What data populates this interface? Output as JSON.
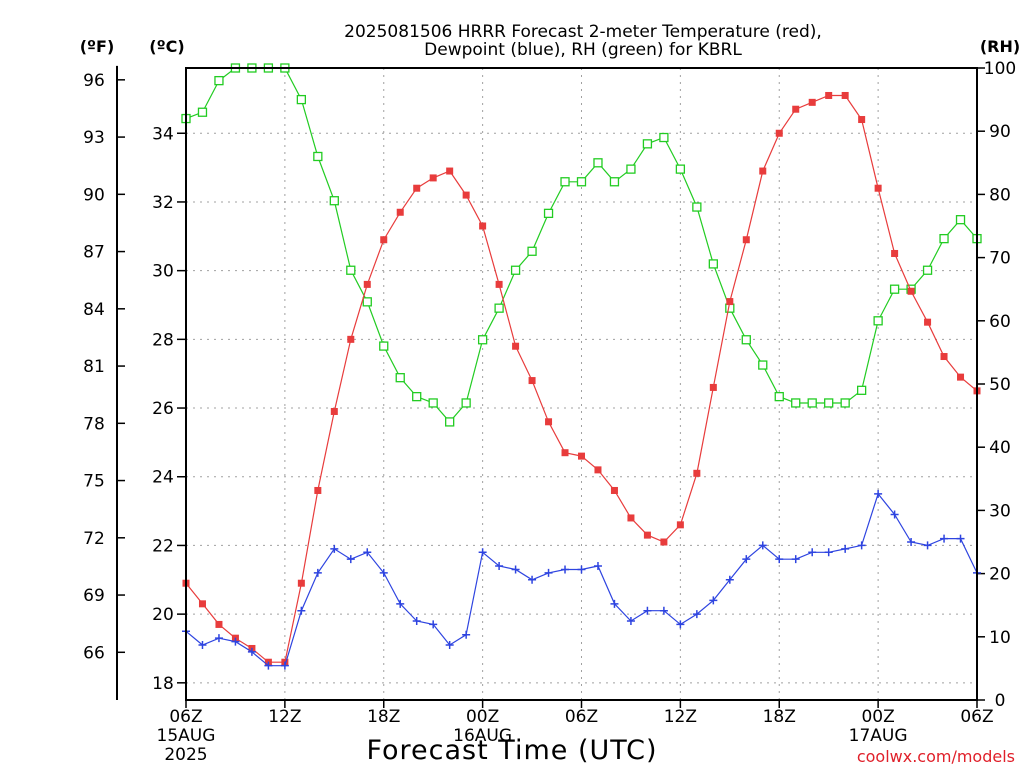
{
  "chart_data": {
    "type": "line",
    "title_line1": "2025081506 HRRR Forecast 2-meter Temperature (red),",
    "title_line2": "Dewpoint (blue), RH (green) for KBRL",
    "xlabel": "Forecast Time (UTC)",
    "credit": "coolwx.com/models",
    "unit_f": "(ºF)",
    "unit_c": "(ºC)",
    "unit_rh": "(RH)",
    "x_ticks": [
      {
        "hour": 0,
        "line1": "06Z",
        "line2": "15AUG",
        "line3": "2025"
      },
      {
        "hour": 6,
        "line1": "12Z",
        "line2": "",
        "line3": ""
      },
      {
        "hour": 12,
        "line1": "18Z",
        "line2": "",
        "line3": ""
      },
      {
        "hour": 18,
        "line1": "00Z",
        "line2": "16AUG",
        "line3": ""
      },
      {
        "hour": 24,
        "line1": "06Z",
        "line2": "",
        "line3": ""
      },
      {
        "hour": 30,
        "line1": "12Z",
        "line2": "",
        "line3": ""
      },
      {
        "hour": 36,
        "line1": "18Z",
        "line2": "",
        "line3": ""
      },
      {
        "hour": 42,
        "line1": "00Z",
        "line2": "17AUG",
        "line3": ""
      },
      {
        "hour": 48,
        "line1": "06Z",
        "line2": "",
        "line3": ""
      }
    ],
    "xlim": [
      0,
      48
    ],
    "ylim_c": [
      17.5,
      35.9
    ],
    "ylim_rh": [
      0,
      100
    ],
    "celsius_ticks": [
      18,
      20,
      22,
      24,
      26,
      28,
      30,
      32,
      34
    ],
    "fahrenheit_ticks": [
      66,
      69,
      72,
      75,
      78,
      81,
      84,
      87,
      90,
      93,
      96
    ],
    "rh_ticks": [
      0,
      10,
      20,
      30,
      40,
      50,
      60,
      70,
      80,
      90,
      100
    ],
    "grid": true,
    "colors": {
      "temperature": "#e83c3c",
      "dewpoint": "#2e44e0",
      "rh": "#22cc22"
    },
    "series": [
      {
        "name": "Temperature",
        "units": "°C",
        "marker": "filled-square",
        "values": [
          20.9,
          20.3,
          19.7,
          19.3,
          19.0,
          18.6,
          18.6,
          20.9,
          23.6,
          25.9,
          28.0,
          29.6,
          30.9,
          31.7,
          32.4,
          32.7,
          32.9,
          32.2,
          31.3,
          29.6,
          27.8,
          26.8,
          25.6,
          24.7,
          24.6,
          24.2,
          23.6,
          22.8,
          22.3,
          22.1,
          22.6,
          24.1,
          26.6,
          29.1,
          30.9,
          32.9,
          34.0,
          34.7,
          34.9,
          35.1,
          35.1,
          34.4,
          32.4,
          30.5,
          29.4,
          28.5,
          27.5,
          26.9,
          26.5
        ]
      },
      {
        "name": "Dewpoint",
        "units": "°C",
        "marker": "plus",
        "values": [
          19.5,
          19.1,
          19.3,
          19.2,
          18.9,
          18.5,
          18.5,
          20.1,
          21.2,
          21.9,
          21.6,
          21.8,
          21.2,
          20.3,
          19.8,
          19.7,
          19.1,
          19.4,
          21.8,
          21.4,
          21.3,
          21.0,
          21.2,
          21.3,
          21.3,
          21.4,
          20.3,
          19.8,
          20.1,
          20.1,
          19.7,
          20.0,
          20.4,
          21.0,
          21.6,
          22.0,
          21.6,
          21.6,
          21.8,
          21.8,
          21.9,
          22.0,
          23.5,
          22.9,
          22.1,
          22.0,
          22.2,
          22.2,
          21.2
        ]
      },
      {
        "name": "RH",
        "units": "%",
        "marker": "open-square",
        "values": [
          92,
          93,
          98,
          100,
          100,
          100,
          100,
          95,
          86,
          79,
          68,
          63,
          56,
          51,
          48,
          47,
          44,
          47,
          57,
          62,
          68,
          71,
          77,
          82,
          82,
          85,
          82,
          84,
          88,
          89,
          84,
          78,
          69,
          62,
          57,
          53,
          48,
          47,
          47,
          47,
          47,
          49,
          60,
          65,
          65,
          68,
          73,
          76,
          73
        ]
      }
    ]
  }
}
